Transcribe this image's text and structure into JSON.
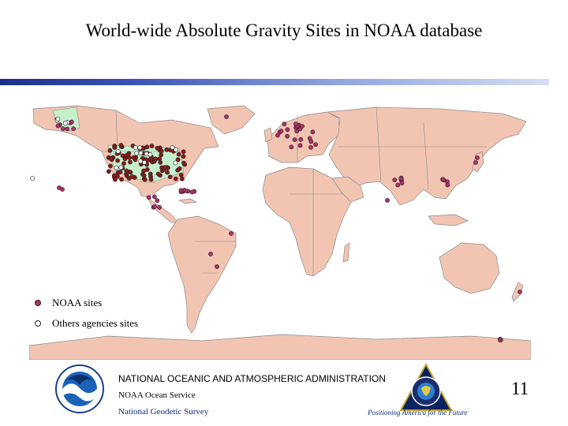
{
  "slide": {
    "title": "World-wide Absolute Gravity Sites in NOAA database",
    "page_number": "11"
  },
  "legend": {
    "items": [
      {
        "label": "NOAA sites",
        "color": "#b0306a"
      },
      {
        "label": "Others agencies sites",
        "color": "#ffffff"
      }
    ]
  },
  "map": {
    "land_color": "#f2c5b2",
    "ocean_color": "#ffffff",
    "border_color": "#8a8a8a",
    "highlight_color": "#c6efcc",
    "noaa_site_color": "#b0306a",
    "us_site_color": "#8a1a1a",
    "other_site_color": "#ffffff"
  },
  "footer": {
    "agency_name": "NATIONAL OCEANIC AND ATMOSPHERIC ADMINISTRATION",
    "service": "NOAA Ocean Service",
    "survey": "National Geodetic Survey",
    "tagline": "Positioning America for the Future"
  },
  "logos": {
    "noaa_logo_text": "NOAA",
    "ngs_logo_text": "NATIONAL GEODETIC SURVEY"
  }
}
